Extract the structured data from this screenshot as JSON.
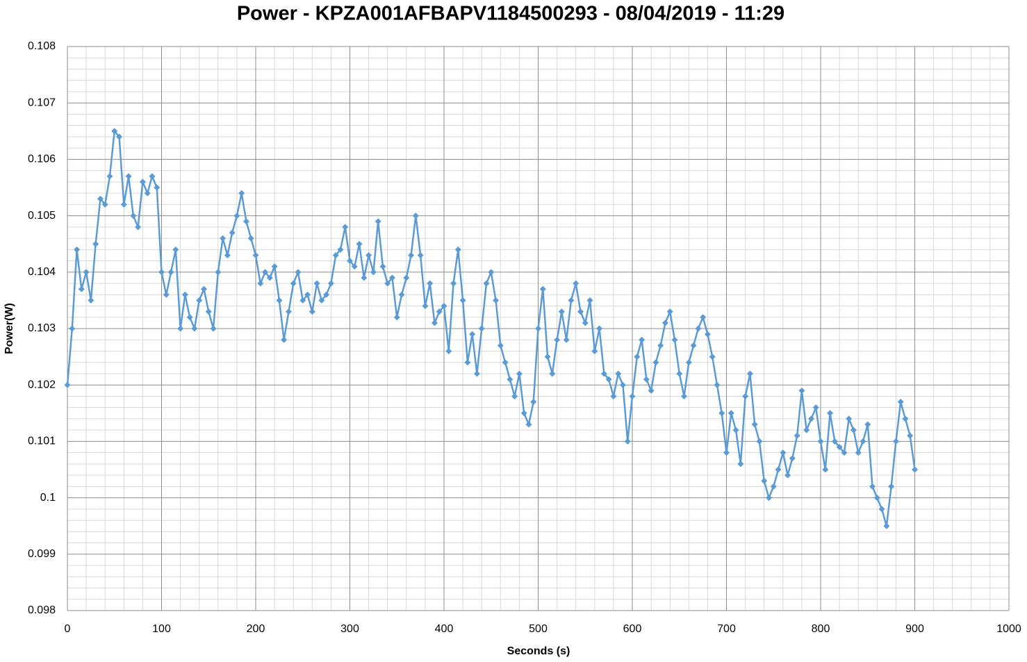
{
  "chart_data": {
    "type": "scatter-line",
    "title": "Power - KPZA001AFBAPV1184500293 - 08/04/2019 - 11:29",
    "x_label": "Seconds (s)",
    "y_label": "Power(W)",
    "xlim": [
      0,
      1000
    ],
    "xticks": [
      0,
      100,
      200,
      300,
      400,
      500,
      600,
      700,
      800,
      900,
      1000
    ],
    "ylim": [
      0.098,
      0.108
    ],
    "yticks": [
      0.098,
      0.099,
      0.1,
      0.101,
      0.102,
      0.103,
      0.104,
      0.105,
      0.106,
      0.107,
      0.108
    ],
    "grid": true,
    "minor_grid": true,
    "marker": "diamond",
    "series": [
      {
        "name": "Power",
        "color": "#5b9bd5",
        "x": [
          0,
          5,
          10,
          15,
          20,
          25,
          30,
          35,
          40,
          45,
          50,
          55,
          60,
          65,
          70,
          75,
          80,
          85,
          90,
          95,
          100,
          105,
          110,
          115,
          120,
          125,
          130,
          135,
          140,
          145,
          150,
          155,
          160,
          165,
          170,
          175,
          180,
          185,
          190,
          195,
          200,
          205,
          210,
          215,
          220,
          225,
          230,
          235,
          240,
          245,
          250,
          255,
          260,
          265,
          270,
          275,
          280,
          285,
          290,
          295,
          300,
          305,
          310,
          315,
          320,
          325,
          330,
          335,
          340,
          345,
          350,
          355,
          360,
          365,
          370,
          375,
          380,
          385,
          390,
          395,
          400,
          405,
          410,
          415,
          420,
          425,
          430,
          435,
          440,
          445,
          450,
          455,
          460,
          465,
          470,
          475,
          480,
          485,
          490,
          495,
          500,
          505,
          510,
          515,
          520,
          525,
          530,
          535,
          540,
          545,
          550,
          555,
          560,
          565,
          570,
          575,
          580,
          585,
          590,
          595,
          600,
          605,
          610,
          615,
          620,
          625,
          630,
          635,
          640,
          645,
          650,
          655,
          660,
          665,
          670,
          675,
          680,
          685,
          690,
          695,
          700,
          705,
          710,
          715,
          720,
          725,
          730,
          735,
          740,
          745,
          750,
          755,
          760,
          765,
          770,
          775,
          780,
          785,
          790,
          795,
          800,
          805,
          810,
          815,
          820,
          825,
          830,
          835,
          840,
          845,
          850,
          855,
          860,
          865,
          870,
          875,
          880,
          885,
          890,
          895,
          900
        ],
        "values": [
          0.102,
          0.103,
          0.1044,
          0.1037,
          0.104,
          0.1035,
          0.1045,
          0.1053,
          0.1052,
          0.1057,
          0.1065,
          0.1064,
          0.1052,
          0.1057,
          0.105,
          0.1048,
          0.1056,
          0.1054,
          0.1057,
          0.1055,
          0.104,
          0.1036,
          0.104,
          0.1044,
          0.103,
          0.1036,
          0.1032,
          0.103,
          0.1035,
          0.1037,
          0.1033,
          0.103,
          0.104,
          0.1046,
          0.1043,
          0.1047,
          0.105,
          0.1054,
          0.1049,
          0.1046,
          0.1043,
          0.1038,
          0.104,
          0.1039,
          0.1041,
          0.1035,
          0.1028,
          0.1033,
          0.1038,
          0.104,
          0.1035,
          0.1036,
          0.1033,
          0.1038,
          0.1035,
          0.1036,
          0.1038,
          0.1043,
          0.1044,
          0.1048,
          0.1042,
          0.1041,
          0.1045,
          0.1039,
          0.1043,
          0.104,
          0.1049,
          0.1041,
          0.1038,
          0.1039,
          0.1032,
          0.1036,
          0.1039,
          0.1043,
          0.105,
          0.1043,
          0.1034,
          0.1038,
          0.1031,
          0.1033,
          0.1034,
          0.1026,
          0.1038,
          0.1044,
          0.1035,
          0.1024,
          0.1029,
          0.1022,
          0.103,
          0.1038,
          0.104,
          0.1035,
          0.1027,
          0.1024,
          0.1021,
          0.1018,
          0.1022,
          0.1015,
          0.1013,
          0.1017,
          0.103,
          0.1037,
          0.1025,
          0.1022,
          0.1028,
          0.1033,
          0.1028,
          0.1035,
          0.1038,
          0.1033,
          0.1031,
          0.1035,
          0.1026,
          0.103,
          0.1022,
          0.1021,
          0.1018,
          0.1022,
          0.102,
          0.101,
          0.1018,
          0.1025,
          0.1028,
          0.1021,
          0.1019,
          0.1024,
          0.1027,
          0.1031,
          0.1033,
          0.1028,
          0.1022,
          0.1018,
          0.1024,
          0.1027,
          0.103,
          0.1032,
          0.1029,
          0.1025,
          0.102,
          0.1015,
          0.1008,
          0.1015,
          0.1012,
          0.1006,
          0.1018,
          0.1022,
          0.1013,
          0.101,
          0.1003,
          0.1,
          0.1002,
          0.1005,
          0.1008,
          0.1004,
          0.1007,
          0.1011,
          0.1019,
          0.1012,
          0.1014,
          0.1016,
          0.101,
          0.1005,
          0.1015,
          0.101,
          0.1009,
          0.1008,
          0.1014,
          0.1012,
          0.1008,
          0.101,
          0.1013,
          0.1002,
          0.1,
          0.0998,
          0.0995,
          0.1002,
          0.101,
          0.1017,
          0.1014,
          0.1011,
          0.1005
        ]
      }
    ]
  }
}
